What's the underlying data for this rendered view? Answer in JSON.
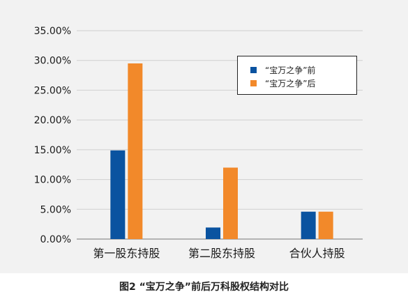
{
  "caption": "图2 “宝万之争”前后万科股权结构对比",
  "colors": {
    "background": "#f2f2f2",
    "grid": "#cfcfcf",
    "before": "#0a53a0",
    "after": "#f2892a"
  },
  "chart_data": {
    "type": "bar",
    "title": "",
    "xlabel": "",
    "ylabel": "",
    "ylim": [
      0,
      35
    ],
    "y_ticks": [
      0,
      5,
      10,
      15,
      20,
      25,
      30,
      35
    ],
    "y_tick_labels": [
      "0.00%",
      "5.00%",
      "10.00%",
      "15.00%",
      "20.00%",
      "25.00%",
      "30.00%",
      "35.00%"
    ],
    "grid": true,
    "legend_position": "top-right",
    "categories": [
      "第一股东持股",
      "第二股东持股",
      "合伙人持股"
    ],
    "series": [
      {
        "name": "“宝万之争”前",
        "color": "#0a53a0",
        "values": [
          14.89,
          1.94,
          4.6
        ]
      },
      {
        "name": "“宝万之争”后",
        "color": "#f2892a",
        "values": [
          29.5,
          12.0,
          4.6
        ]
      }
    ]
  }
}
